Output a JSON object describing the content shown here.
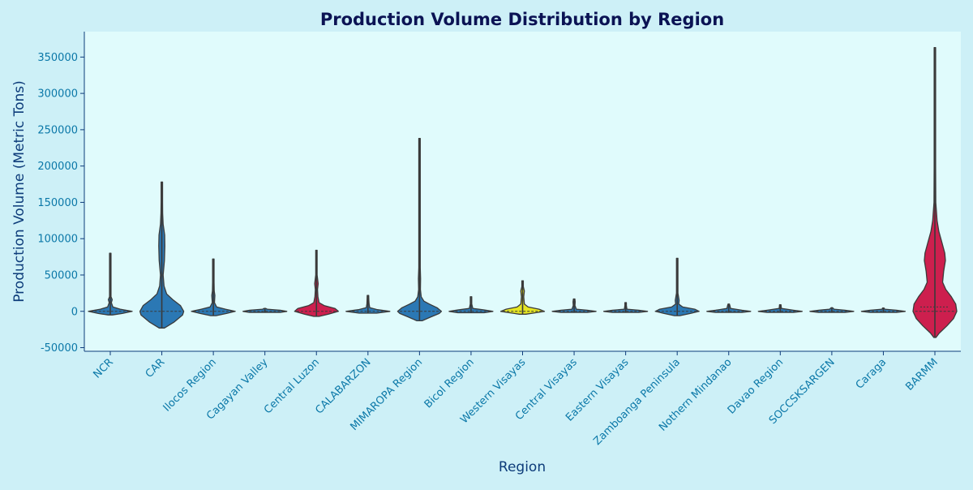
{
  "chart_data": {
    "type": "violin",
    "title": "Production Volume Distribution by Region",
    "xlabel": "Region",
    "ylabel": "Production Volume (Metric Tons)",
    "ylim": [
      -55000,
      385000
    ],
    "yticks": [
      -50000,
      0,
      50000,
      100000,
      150000,
      200000,
      250000,
      300000,
      350000
    ],
    "grid": false,
    "legend": "none",
    "colors": {
      "background": "#cdf0f7",
      "plot_background": "#e0fbfc",
      "title": "#0b1354",
      "axis_label": "#0d3c7a",
      "tick": "#0b78a8",
      "axis_line": "#0d3c7a",
      "violin_edge": "#3a3a3a"
    },
    "categories": [
      "NCR",
      "CAR",
      "Ilocos Region",
      "Cagayan Valley",
      "Central Luzon",
      "CALABARZON",
      "MIMAROPA Region",
      "Bicol Region",
      "Western Visayas",
      "Central Visayas",
      "Eastern Visayas",
      "Zamboanga Peninsula",
      "Nothern Mindanao",
      "Davao Region",
      "SOCCSKSARGEN",
      "Caraga",
      "BARMM"
    ],
    "series": [
      {
        "category": "NCR",
        "color": "#2b78b4",
        "min": -5000,
        "max": 80000,
        "median": 0,
        "profile": [
          [
            -5000,
            0.1
          ],
          [
            -3000,
            0.55
          ],
          [
            0,
            1.0
          ],
          [
            3000,
            0.45
          ],
          [
            6000,
            0.12
          ],
          [
            12000,
            0.05
          ],
          [
            16000,
            0.09
          ],
          [
            20000,
            0.02
          ],
          [
            40000,
            0.01
          ],
          [
            80000,
            0.01
          ]
        ]
      },
      {
        "category": "CAR",
        "color": "#2b78b4",
        "min": -23000,
        "max": 178000,
        "median": 0,
        "profile": [
          [
            -23000,
            0.12
          ],
          [
            -15000,
            0.55
          ],
          [
            -5000,
            0.95
          ],
          [
            0,
            1.0
          ],
          [
            8000,
            0.85
          ],
          [
            16000,
            0.5
          ],
          [
            24000,
            0.22
          ],
          [
            35000,
            0.1
          ],
          [
            50000,
            0.06
          ],
          [
            70000,
            0.12
          ],
          [
            90000,
            0.14
          ],
          [
            105000,
            0.13
          ],
          [
            120000,
            0.06
          ],
          [
            135000,
            0.04
          ],
          [
            150000,
            0.02
          ],
          [
            178000,
            0.01
          ]
        ]
      },
      {
        "category": "Ilocos Region",
        "color": "#2b78b4",
        "min": -6000,
        "max": 72000,
        "median": 0,
        "profile": [
          [
            -6000,
            0.12
          ],
          [
            -3000,
            0.6
          ],
          [
            0,
            1.0
          ],
          [
            3000,
            0.55
          ],
          [
            6000,
            0.15
          ],
          [
            12000,
            0.05
          ],
          [
            22000,
            0.07
          ],
          [
            28000,
            0.04
          ],
          [
            40000,
            0.02
          ],
          [
            72000,
            0.01
          ]
        ]
      },
      {
        "category": "Cagayan Valley",
        "color": "#2b78b4",
        "min": -1500,
        "max": 4000,
        "median": 0,
        "profile": [
          [
            -1500,
            0.7
          ],
          [
            0,
            1.0
          ],
          [
            1500,
            0.7
          ],
          [
            3000,
            0.1
          ],
          [
            4000,
            0.04
          ]
        ]
      },
      {
        "category": "Central Luzon",
        "color": "#cd1f4e",
        "min": -7000,
        "max": 84000,
        "median": 0,
        "profile": [
          [
            -7000,
            0.12
          ],
          [
            -4000,
            0.55
          ],
          [
            0,
            1.0
          ],
          [
            4000,
            0.85
          ],
          [
            8000,
            0.35
          ],
          [
            12000,
            0.12
          ],
          [
            20000,
            0.07
          ],
          [
            30000,
            0.05
          ],
          [
            38000,
            0.08
          ],
          [
            50000,
            0.02
          ],
          [
            84000,
            0.01
          ]
        ]
      },
      {
        "category": "CALABARZON",
        "color": "#2b78b4",
        "min": -2500,
        "max": 22000,
        "median": 0,
        "profile": [
          [
            -2500,
            0.4
          ],
          [
            0,
            1.0
          ],
          [
            2500,
            0.4
          ],
          [
            5000,
            0.08
          ],
          [
            10000,
            0.05
          ],
          [
            15000,
            0.04
          ],
          [
            22000,
            0.01
          ]
        ]
      },
      {
        "category": "MIMAROPA Region",
        "color": "#2b78b4",
        "min": -13000,
        "max": 238000,
        "median": 0,
        "profile": [
          [
            -13000,
            0.12
          ],
          [
            -8000,
            0.5
          ],
          [
            -3000,
            0.9
          ],
          [
            0,
            1.0
          ],
          [
            5000,
            0.8
          ],
          [
            10000,
            0.45
          ],
          [
            14000,
            0.2
          ],
          [
            20000,
            0.08
          ],
          [
            30000,
            0.04
          ],
          [
            45000,
            0.05
          ],
          [
            60000,
            0.02
          ],
          [
            100000,
            0.01
          ],
          [
            238000,
            0.01
          ]
        ]
      },
      {
        "category": "Bicol Region",
        "color": "#2b78b4",
        "min": -2000,
        "max": 20000,
        "median": 0,
        "profile": [
          [
            -2000,
            0.6
          ],
          [
            0,
            1.0
          ],
          [
            2000,
            0.6
          ],
          [
            4000,
            0.08
          ],
          [
            10000,
            0.03
          ],
          [
            20000,
            0.01
          ]
        ]
      },
      {
        "category": "Western Visayas",
        "color": "#e6e622",
        "min": -4000,
        "max": 42000,
        "median": 0,
        "profile": [
          [
            -4000,
            0.15
          ],
          [
            -2000,
            0.6
          ],
          [
            0,
            1.0
          ],
          [
            3000,
            0.75
          ],
          [
            6000,
            0.25
          ],
          [
            10000,
            0.08
          ],
          [
            20000,
            0.05
          ],
          [
            28000,
            0.08
          ],
          [
            34000,
            0.03
          ],
          [
            42000,
            0.01
          ]
        ]
      },
      {
        "category": "Central Visayas",
        "color": "#2b78b4",
        "min": -1500,
        "max": 17000,
        "median": 0,
        "profile": [
          [
            -1500,
            0.6
          ],
          [
            0,
            1.0
          ],
          [
            1500,
            0.6
          ],
          [
            3000,
            0.1
          ],
          [
            8000,
            0.04
          ],
          [
            13000,
            0.05
          ],
          [
            17000,
            0.01
          ]
        ]
      },
      {
        "category": "Eastern Visayas",
        "color": "#2b78b4",
        "min": -1500,
        "max": 12000,
        "median": 0,
        "profile": [
          [
            -1500,
            0.6
          ],
          [
            0,
            1.0
          ],
          [
            1500,
            0.6
          ],
          [
            3000,
            0.06
          ],
          [
            8000,
            0.03
          ],
          [
            12000,
            0.01
          ]
        ]
      },
      {
        "category": "Zamboanga Peninsula",
        "color": "#2b78b4",
        "min": -6000,
        "max": 73000,
        "median": 0,
        "profile": [
          [
            -6000,
            0.12
          ],
          [
            -3000,
            0.6
          ],
          [
            0,
            1.0
          ],
          [
            3000,
            0.8
          ],
          [
            6000,
            0.25
          ],
          [
            10000,
            0.07
          ],
          [
            15000,
            0.09
          ],
          [
            25000,
            0.03
          ],
          [
            40000,
            0.03
          ],
          [
            73000,
            0.01
          ]
        ]
      },
      {
        "category": "Nothern Mindanao",
        "color": "#2b78b4",
        "min": -1500,
        "max": 10000,
        "median": 0,
        "profile": [
          [
            -1500,
            0.6
          ],
          [
            0,
            1.0
          ],
          [
            1500,
            0.6
          ],
          [
            4000,
            0.08
          ],
          [
            7000,
            0.06
          ],
          [
            10000,
            0.01
          ]
        ]
      },
      {
        "category": "Davao Region",
        "color": "#2b78b4",
        "min": -1500,
        "max": 9000,
        "median": 0,
        "profile": [
          [
            -1500,
            0.6
          ],
          [
            0,
            1.0
          ],
          [
            1500,
            0.6
          ],
          [
            4000,
            0.05
          ],
          [
            9000,
            0.01
          ]
        ]
      },
      {
        "category": "SOCCSKSARGEN",
        "color": "#2b78b4",
        "min": -1500,
        "max": 5000,
        "median": 0,
        "profile": [
          [
            -1500,
            0.6
          ],
          [
            0,
            1.0
          ],
          [
            1500,
            0.6
          ],
          [
            3000,
            0.1
          ],
          [
            5000,
            0.02
          ]
        ]
      },
      {
        "category": "Caraga",
        "color": "#2b78b4",
        "min": -1500,
        "max": 4500,
        "median": 0,
        "profile": [
          [
            -1500,
            0.6
          ],
          [
            0,
            1.0
          ],
          [
            1500,
            0.6
          ],
          [
            3000,
            0.06
          ],
          [
            4500,
            0.01
          ]
        ]
      },
      {
        "category": "BARMM",
        "color": "#cd1f4e",
        "min": -36000,
        "max": 363000,
        "median": 0,
        "q3": 6000,
        "profile": [
          [
            -36000,
            0.05
          ],
          [
            -30000,
            0.2
          ],
          [
            -20000,
            0.55
          ],
          [
            -10000,
            0.85
          ],
          [
            0,
            1.0
          ],
          [
            10000,
            0.95
          ],
          [
            20000,
            0.75
          ],
          [
            30000,
            0.5
          ],
          [
            40000,
            0.35
          ],
          [
            55000,
            0.4
          ],
          [
            70000,
            0.48
          ],
          [
            80000,
            0.45
          ],
          [
            95000,
            0.32
          ],
          [
            110000,
            0.18
          ],
          [
            125000,
            0.1
          ],
          [
            150000,
            0.04
          ],
          [
            200000,
            0.02
          ],
          [
            280000,
            0.015
          ],
          [
            363000,
            0.01
          ]
        ]
      }
    ]
  }
}
